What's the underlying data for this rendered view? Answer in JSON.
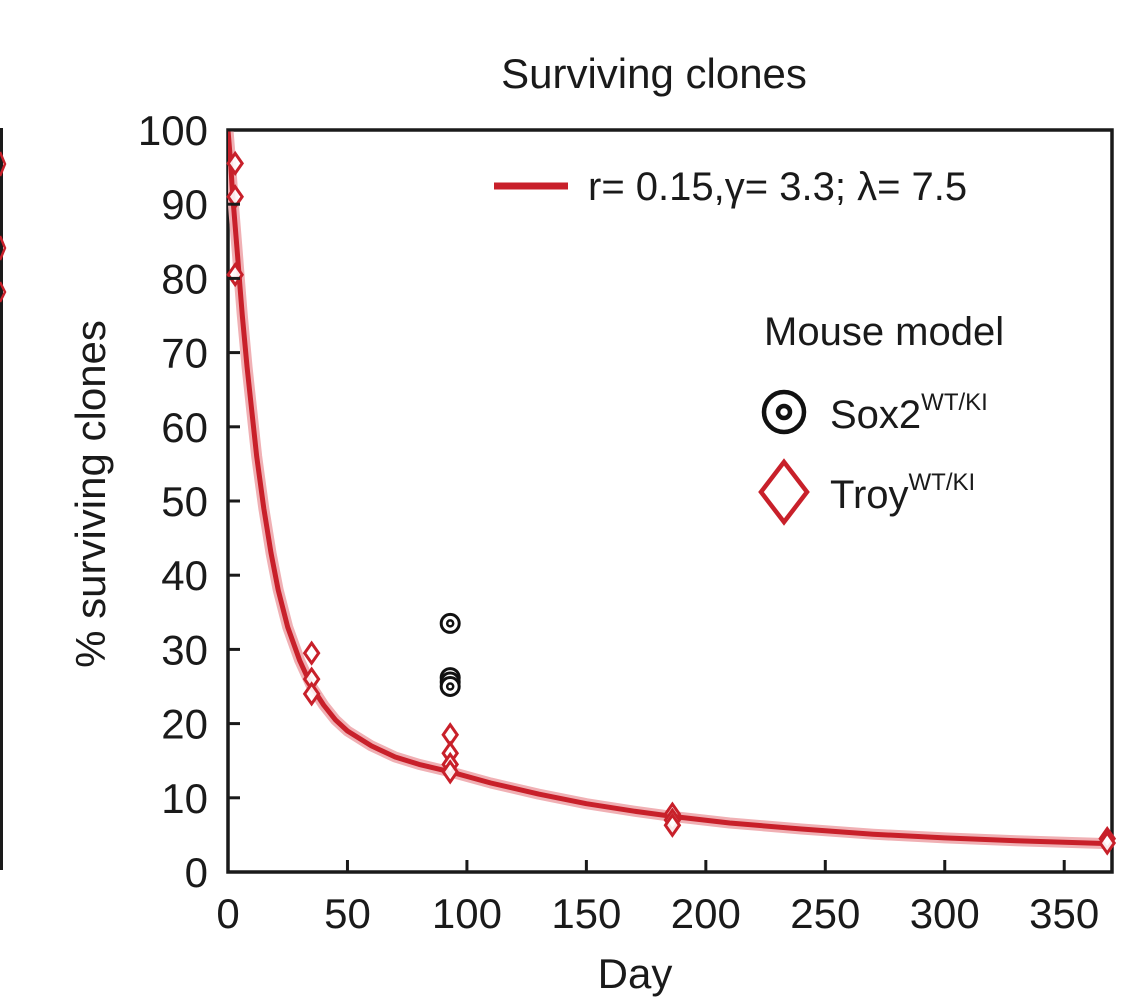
{
  "chart_data": {
    "type": "scatter",
    "title": "Surviving clones",
    "xlabel": "Day",
    "ylabel": "% surviving clones",
    "xlim": [
      0,
      370
    ],
    "ylim": [
      0,
      100
    ],
    "x_ticks": [
      0,
      50,
      100,
      150,
      200,
      250,
      300,
      350
    ],
    "y_ticks": [
      0,
      10,
      20,
      30,
      40,
      50,
      60,
      70,
      80,
      90,
      100
    ],
    "grid": false,
    "legend_position": "top-right",
    "fit": {
      "name": "r= 0.15,γ= 3.3; λ= 7.5",
      "color": "#c8202a",
      "band_color": "#f0b0b4",
      "points": [
        [
          0,
          100
        ],
        [
          1,
          96
        ],
        [
          2,
          91
        ],
        [
          3,
          87
        ],
        [
          4,
          83
        ],
        [
          5,
          79
        ],
        [
          6,
          75
        ],
        [
          8,
          68
        ],
        [
          10,
          62
        ],
        [
          12,
          56
        ],
        [
          15,
          49
        ],
        [
          18,
          43
        ],
        [
          21,
          38
        ],
        [
          25,
          33
        ],
        [
          30,
          28.5
        ],
        [
          35,
          25
        ],
        [
          40,
          22.5
        ],
        [
          45,
          20.5
        ],
        [
          50,
          19
        ],
        [
          60,
          17
        ],
        [
          70,
          15.5
        ],
        [
          80,
          14.5
        ],
        [
          93,
          13.5
        ],
        [
          110,
          12
        ],
        [
          130,
          10.5
        ],
        [
          150,
          9.2
        ],
        [
          170,
          8.2
        ],
        [
          186,
          7.5
        ],
        [
          210,
          6.6
        ],
        [
          240,
          5.8
        ],
        [
          270,
          5.1
        ],
        [
          300,
          4.6
        ],
        [
          330,
          4.2
        ],
        [
          370,
          3.8
        ]
      ]
    },
    "legend": {
      "title": "Mouse model",
      "entries": [
        {
          "label": "Sox2",
          "superscript": "WT/KI",
          "marker": "target",
          "color": "#111111"
        },
        {
          "label": "Troy",
          "superscript": "WT/KI",
          "marker": "diamond",
          "color": "#c8202a"
        }
      ]
    },
    "series": [
      {
        "name": "Sox2WT/KI",
        "marker": "target",
        "color": "#111111",
        "points": [
          [
            93,
            33.5
          ],
          [
            93,
            26.2
          ],
          [
            93,
            25.6
          ],
          [
            93,
            25.0
          ]
        ]
      },
      {
        "name": "TroyWT/KI",
        "marker": "diamond",
        "color": "#c8202a",
        "points": [
          [
            3,
            95.5
          ],
          [
            3,
            91
          ],
          [
            3,
            80.5
          ],
          [
            35,
            29.5
          ],
          [
            35,
            26
          ],
          [
            35,
            24
          ],
          [
            93,
            18.5
          ],
          [
            93,
            16
          ],
          [
            93,
            14.5
          ],
          [
            93,
            13.5
          ],
          [
            186,
            7.8
          ],
          [
            186,
            7.0
          ],
          [
            186,
            6.3
          ],
          [
            368,
            4.5
          ],
          [
            368,
            3.9
          ]
        ]
      }
    ]
  }
}
